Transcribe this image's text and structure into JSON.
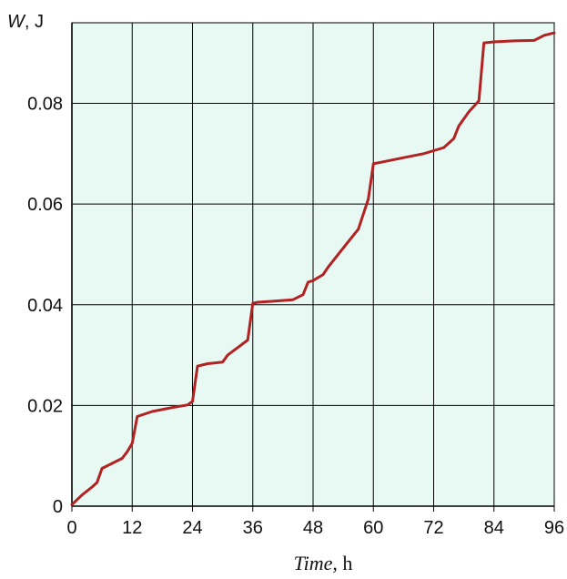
{
  "chart_data": {
    "type": "line",
    "title": "",
    "xlabel": {
      "symbol": "Time",
      "unit": ", h"
    },
    "ylabel": {
      "symbol": "W",
      "unit": ", J"
    },
    "xlim": [
      0,
      96
    ],
    "ylim": [
      0,
      0.096
    ],
    "x_ticks": [
      0,
      12,
      24,
      36,
      48,
      60,
      72,
      84,
      96
    ],
    "x_tick_labels": [
      "0",
      "12",
      "24",
      "36",
      "48",
      "60",
      "72",
      "84",
      "96"
    ],
    "y_ticks": [
      0,
      0.02,
      0.04,
      0.06,
      0.08
    ],
    "y_tick_labels": [
      "0",
      "0.02",
      "0.04",
      "0.06",
      "0.08"
    ],
    "grid": true,
    "colors": {
      "background": "#e8f8f2",
      "line": "#b22222",
      "grid": "#000000"
    },
    "series": [
      {
        "x": [
          0,
          2,
          4,
          5,
          6,
          8,
          10,
          11,
          12,
          13,
          16,
          20,
          23,
          24,
          25,
          27,
          30,
          31,
          33,
          35,
          36,
          37,
          40,
          44,
          46,
          47,
          48,
          50,
          51,
          53,
          55,
          57,
          59,
          60,
          62,
          66,
          70,
          72,
          74,
          76,
          77,
          79,
          81,
          82,
          84,
          88,
          92,
          94,
          96
        ],
        "y": [
          0.0003,
          0.0022,
          0.0038,
          0.0047,
          0.0075,
          0.0085,
          0.0095,
          0.0108,
          0.0125,
          0.0178,
          0.0188,
          0.0196,
          0.0201,
          0.0208,
          0.0278,
          0.0283,
          0.0286,
          0.03,
          0.0315,
          0.033,
          0.0403,
          0.0405,
          0.0407,
          0.041,
          0.042,
          0.0445,
          0.0448,
          0.046,
          0.0475,
          0.05,
          0.0525,
          0.055,
          0.061,
          0.068,
          0.0684,
          0.0692,
          0.07,
          0.0706,
          0.0712,
          0.073,
          0.0755,
          0.0783,
          0.0805,
          0.092,
          0.0922,
          0.0924,
          0.0925,
          0.0935,
          0.094
        ]
      }
    ]
  }
}
